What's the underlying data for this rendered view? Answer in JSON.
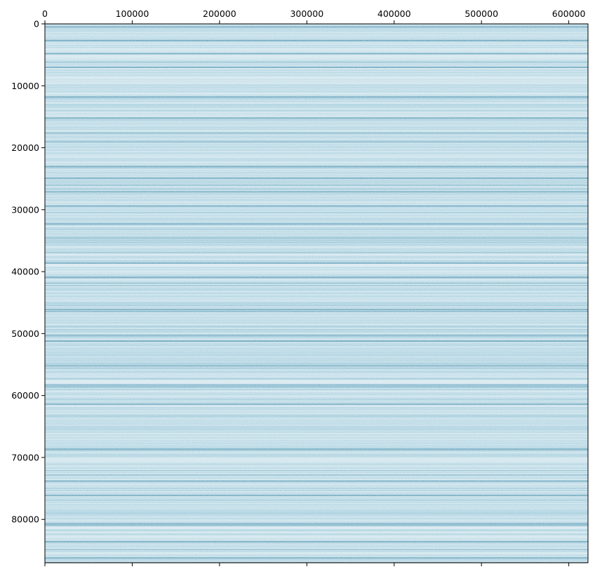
{
  "chart_data": {
    "type": "heatmap",
    "title": "",
    "xlabel": "",
    "ylabel": "",
    "xlim": [
      0,
      622000
    ],
    "ylim": [
      87000,
      0
    ],
    "x_axis_position": "top",
    "y_axis_origin": "top-left",
    "x_ticks": [
      0,
      100000,
      200000,
      300000,
      400000,
      500000,
      600000
    ],
    "x_tick_labels": [
      "0",
      "100000",
      "200000",
      "300000",
      "400000",
      "500000",
      "600000"
    ],
    "y_ticks": [
      0,
      10000,
      20000,
      30000,
      40000,
      50000,
      60000,
      70000,
      80000
    ],
    "y_tick_labels": [
      "0",
      "10000",
      "20000",
      "30000",
      "40000",
      "50000",
      "60000",
      "70000",
      "80000"
    ],
    "grid": false,
    "legend": "none",
    "colormap": "light-to-teal-blue",
    "colors": {
      "low": "#e8f1f5",
      "mid": "#9cc9da",
      "high": "#2f7f9f"
    },
    "description_pattern": "dense horizontal banding; intensity varies by row and is roughly constant along each row",
    "dark_band_rows": [
      500,
      2700,
      4800,
      7000,
      11800,
      15200,
      23000,
      24900,
      27100,
      32300,
      38600,
      40900,
      46100,
      51200,
      55200,
      61400,
      68700,
      73800,
      76100,
      80700,
      83600,
      86200
    ]
  }
}
